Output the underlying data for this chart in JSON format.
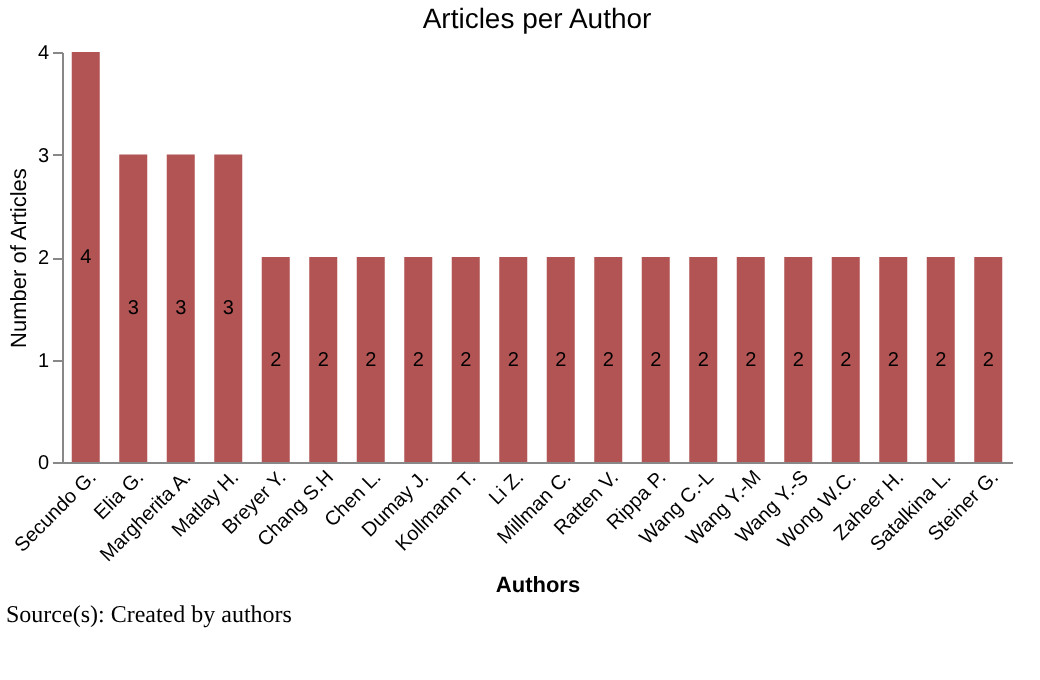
{
  "chart_data": {
    "type": "bar",
    "title": "Articles per Author",
    "xlabel": "Authors",
    "ylabel": "Number of Articles",
    "categories": [
      "Secundo G.",
      "Elia G.",
      "Margherita A.",
      "Matlay H.",
      "Breyer Y.",
      "Chang S.H",
      "Chen L.",
      "Dumay J.",
      "Kollmann T.",
      "Li Z.",
      "Millman C.",
      "Ratten V.",
      "Rippa P.",
      "Wang C.-L",
      "Wang Y.-M",
      "Wang Y.-S",
      "Wong W.C.",
      "Zaheer H.",
      "Satalkina L.",
      "Steiner G."
    ],
    "values": [
      4,
      3,
      3,
      3,
      2,
      2,
      2,
      2,
      2,
      2,
      2,
      2,
      2,
      2,
      2,
      2,
      2,
      2,
      2,
      2
    ],
    "color": "#b35454",
    "ylim": [
      0,
      4
    ],
    "yticks": [
      0,
      1,
      2,
      3,
      4
    ],
    "grid": false,
    "data_labels": true,
    "annotations": [
      "Source(s): Created by authors"
    ]
  }
}
